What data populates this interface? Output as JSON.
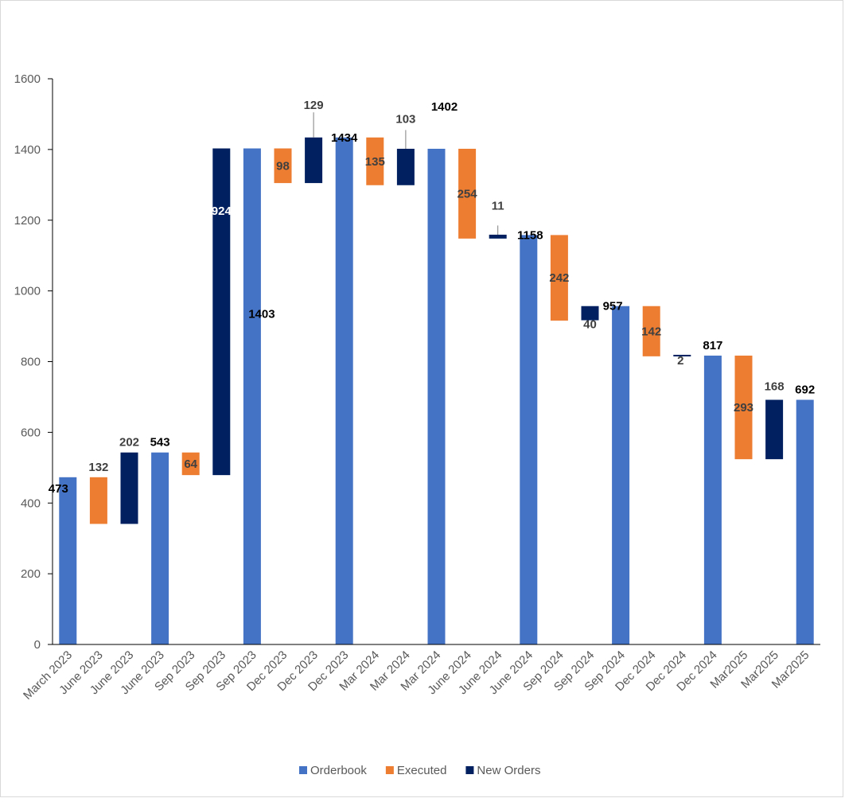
{
  "chart_data": {
    "type": "bar",
    "subtype": "waterfall",
    "title": "",
    "xlabel": "",
    "ylabel": "",
    "ylim": [
      0,
      1600
    ],
    "yticks": [
      0,
      200,
      400,
      600,
      800,
      1000,
      1200,
      1400,
      1600
    ],
    "grid": false,
    "legend_position": "bottom",
    "colors": {
      "Orderbook": "#4472C4",
      "Executed": "#ED7D31",
      "New Orders": "#002060"
    },
    "legend": [
      "Orderbook",
      "Executed",
      "New Orders"
    ],
    "bars": [
      {
        "category": "March 2023",
        "series": "Orderbook",
        "base": 0,
        "top": 473,
        "label": "473"
      },
      {
        "category": "June 2023",
        "series": "Executed",
        "base": 341,
        "top": 473,
        "label": "132"
      },
      {
        "category": "June 2023",
        "series": "New Orders",
        "base": 341,
        "top": 543,
        "label": "202"
      },
      {
        "category": "June 2023",
        "series": "Orderbook",
        "base": 0,
        "top": 543,
        "label": "543"
      },
      {
        "category": "Sep 2023",
        "series": "Executed",
        "base": 479,
        "top": 543,
        "label": "64"
      },
      {
        "category": "Sep 2023",
        "series": "New Orders",
        "base": 479,
        "top": 1403,
        "label": "924"
      },
      {
        "category": "Sep 2023",
        "series": "Orderbook",
        "base": 0,
        "top": 1403,
        "label": "1403"
      },
      {
        "category": "Dec 2023",
        "series": "Executed",
        "base": 1305,
        "top": 1403,
        "label": "98"
      },
      {
        "category": "Dec 2023",
        "series": "New Orders",
        "base": 1305,
        "top": 1434,
        "label": "129"
      },
      {
        "category": "Dec 2023",
        "series": "Orderbook",
        "base": 0,
        "top": 1434,
        "label": "1434"
      },
      {
        "category": "Mar 2024",
        "series": "Executed",
        "base": 1299,
        "top": 1434,
        "label": "135"
      },
      {
        "category": "Mar 2024",
        "series": "New Orders",
        "base": 1299,
        "top": 1402,
        "label": "103"
      },
      {
        "category": "Mar 2024",
        "series": "Orderbook",
        "base": 0,
        "top": 1402,
        "label": "1402"
      },
      {
        "category": "June 2024",
        "series": "Executed",
        "base": 1148,
        "top": 1402,
        "label": "254"
      },
      {
        "category": "June 2024",
        "series": "New Orders",
        "base": 1148,
        "top": 1159,
        "label": "11"
      },
      {
        "category": "June 2024",
        "series": "Orderbook",
        "base": 0,
        "top": 1158,
        "label": "1158"
      },
      {
        "category": "Sep 2024",
        "series": "Executed",
        "base": 916,
        "top": 1158,
        "label": "242"
      },
      {
        "category": "Sep 2024",
        "series": "New Orders",
        "base": 917,
        "top": 957,
        "label": "40"
      },
      {
        "category": "Sep 2024",
        "series": "Orderbook",
        "base": 0,
        "top": 957,
        "label": "957"
      },
      {
        "category": "Dec 2024",
        "series": "Executed",
        "base": 815,
        "top": 957,
        "label": "142"
      },
      {
        "category": "Dec 2024",
        "series": "New Orders",
        "base": 815,
        "top": 817,
        "label": "2"
      },
      {
        "category": "Dec 2024",
        "series": "Orderbook",
        "base": 0,
        "top": 817,
        "label": "817"
      },
      {
        "category": "Mar2025",
        "series": "Executed",
        "base": 524,
        "top": 817,
        "label": "293"
      },
      {
        "category": "Mar2025",
        "series": "New Orders",
        "base": 524,
        "top": 692,
        "label": "168"
      },
      {
        "category": "Mar2025",
        "series": "Orderbook",
        "base": 0,
        "top": 692,
        "label": "692"
      }
    ]
  }
}
